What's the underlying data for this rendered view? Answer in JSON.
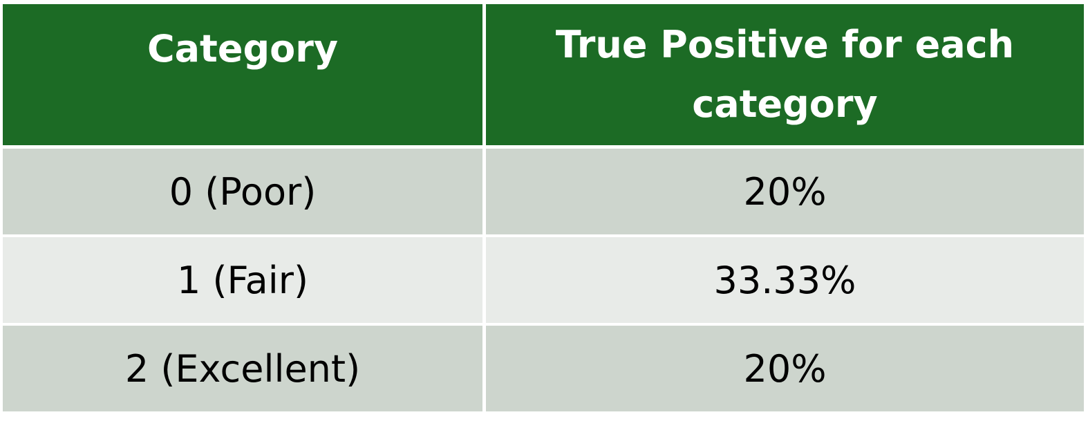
{
  "table": {
    "headers": [
      "Category",
      "True Positive  for each category"
    ],
    "rows": [
      [
        "0 (Poor)",
        "20%"
      ],
      [
        "1 (Fair)",
        "33.33%"
      ],
      [
        "2 (Excellent)",
        "20%"
      ]
    ]
  },
  "colors": {
    "header_bg": "#1c6b25",
    "header_text": "#ffffff",
    "row_odd_bg": "#cdd5cd",
    "row_even_bg": "#e8ebe8",
    "cell_text": "#000000"
  }
}
